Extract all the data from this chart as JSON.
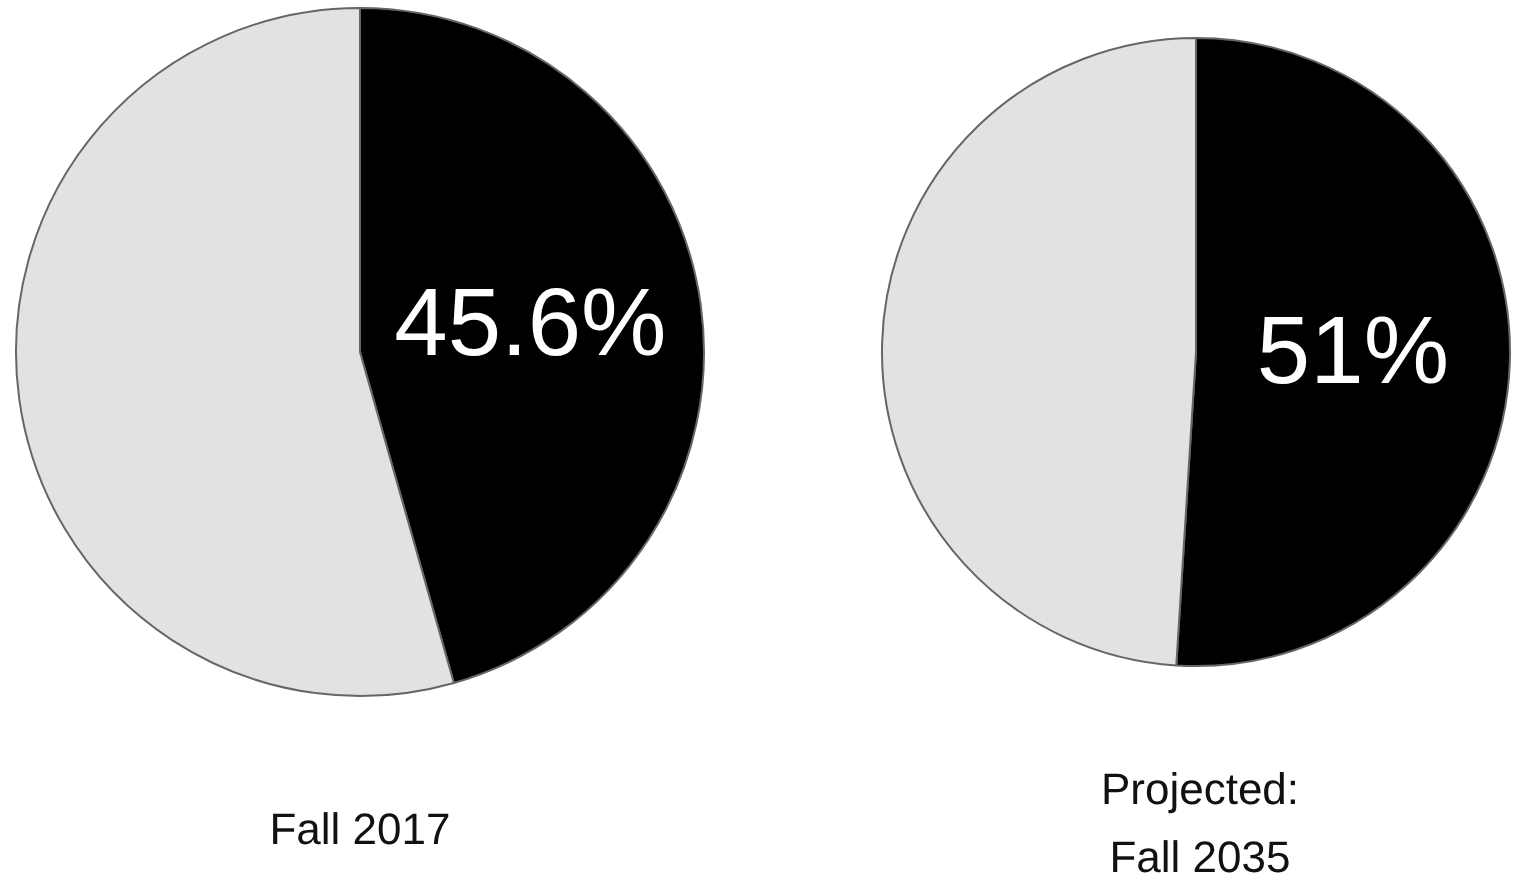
{
  "chart_data": [
    {
      "type": "pie",
      "title": "Fall 2017",
      "categories": [
        null,
        null
      ],
      "values": [
        45.6,
        54.4
      ],
      "colors": [
        "#000000",
        "#e1e2e4"
      ],
      "value_labels": [
        "45.6%",
        null
      ]
    },
    {
      "type": "pie",
      "title": "Projected: Fall 2035",
      "categories": [
        null,
        null
      ],
      "values": [
        51,
        49
      ],
      "colors": [
        "#000000",
        "#e1e2e4"
      ],
      "value_labels": [
        "51%",
        null
      ]
    }
  ]
}
